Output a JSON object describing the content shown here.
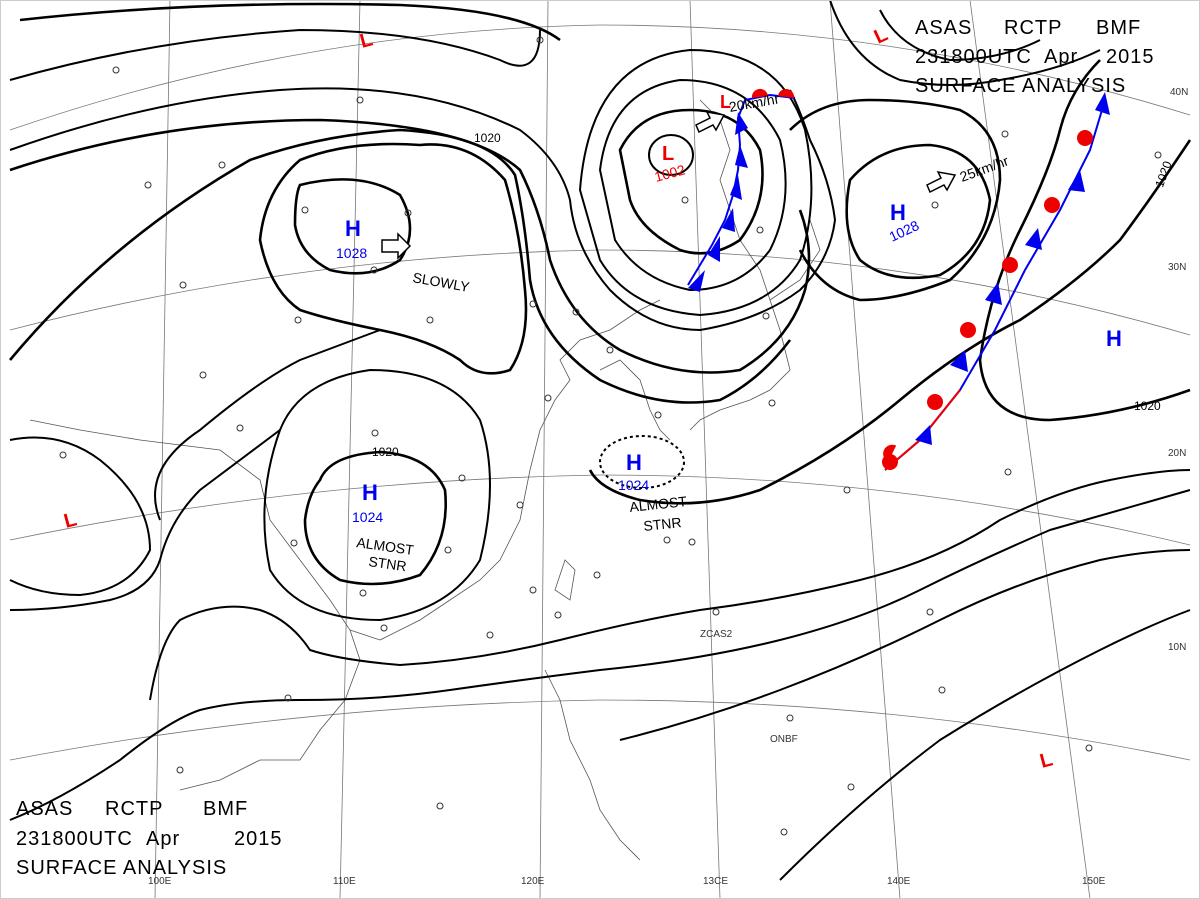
{
  "header": {
    "line1_a": "ASAS",
    "line1_b": "RCTP",
    "line1_c": "BMF",
    "line2_a": "231800UTC",
    "line2_b": "Apr",
    "line2_c": "2015",
    "line3": "SURFACE ANALYSIS"
  },
  "footer": {
    "line1_a": "ASAS",
    "line1_b": "RCTP",
    "line1_c": "BMF",
    "line2_a": "231800UTC",
    "line2_b": "Apr",
    "line2_c": "2015",
    "line3": "SURFACE ANALYSIS"
  },
  "axes": {
    "lon_labels": [
      "100E",
      "110E",
      "120E",
      "13CE",
      "140E",
      "150E"
    ],
    "lat_labels": [
      "40N",
      "30N",
      "20N",
      "10N"
    ]
  },
  "isobar_labels": {
    "north": "1020",
    "south": "1020",
    "east": "1020",
    "east_far": "1020"
  },
  "pressure_centers": {
    "high_west": {
      "symbol": "H",
      "value": "1028",
      "motion": "SLOWLY"
    },
    "high_south": {
      "symbol": "H",
      "value": "1024",
      "motion_a": "ALMOST",
      "motion_b": "STNR"
    },
    "high_taiwan": {
      "symbol": "H",
      "value": "1024",
      "motion_a": "ALMOST",
      "motion_b": "STNR"
    },
    "high_east": {
      "symbol": "H",
      "value": "1028",
      "motion": "25km/hr"
    },
    "high_far_east": {
      "symbol": "H"
    },
    "low_korea": {
      "symbol": "L",
      "value": "1002",
      "motion": "20km/hr"
    },
    "low_nw": {
      "symbol": "L"
    },
    "low_ne": {
      "symbol": "L"
    },
    "low_west": {
      "symbol": "L"
    },
    "low_se": {
      "symbol": "L"
    }
  },
  "colors": {
    "high": "#0000ee",
    "low": "#ee0000",
    "isobar": "#000000",
    "front_cold": "#0000ee",
    "front_warm": "#ee0000"
  },
  "station_text": [
    "1020",
    "1024",
    "ZCAS2",
    "ONBF"
  ]
}
